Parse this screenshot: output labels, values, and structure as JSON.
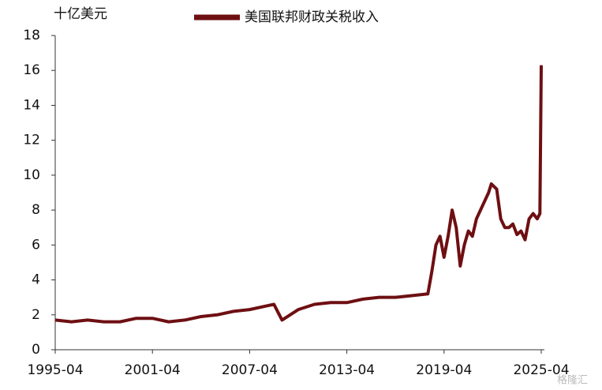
{
  "chart_data": {
    "type": "line",
    "y_label": "十亿美元",
    "x": [
      "1995-04",
      "1996-04",
      "1997-04",
      "1998-04",
      "1999-04",
      "2000-04",
      "2001-04",
      "2002-04",
      "2003-04",
      "2004-04",
      "2005-04",
      "2006-04",
      "2007-04",
      "2008-04",
      "2008-10",
      "2009-04",
      "2009-10",
      "2010-04",
      "2011-04",
      "2012-04",
      "2013-04",
      "2014-04",
      "2015-04",
      "2016-04",
      "2017-04",
      "2018-04",
      "2018-07",
      "2018-10",
      "2019-01",
      "2019-04",
      "2019-07",
      "2019-10",
      "2020-01",
      "2020-04",
      "2020-07",
      "2020-10",
      "2021-01",
      "2021-04",
      "2021-07",
      "2021-10",
      "2022-01",
      "2022-03",
      "2022-07",
      "2022-10",
      "2023-01",
      "2023-04",
      "2023-07",
      "2023-10",
      "2024-01",
      "2024-04",
      "2024-07",
      "2024-10",
      "2025-01",
      "2025-03",
      "2025-04"
    ],
    "series": [
      {
        "name": "美国联邦财政关税收入",
        "color": "#6e0f12",
        "values": [
          1.7,
          1.6,
          1.7,
          1.6,
          1.6,
          1.8,
          1.8,
          1.6,
          1.7,
          1.9,
          2.0,
          2.2,
          2.3,
          2.5,
          2.6,
          1.7,
          2.0,
          2.3,
          2.6,
          2.7,
          2.7,
          2.9,
          3.0,
          3.0,
          3.1,
          3.2,
          4.5,
          6.0,
          6.5,
          5.3,
          6.5,
          8.0,
          7.0,
          4.8,
          6.0,
          6.8,
          6.5,
          7.5,
          8.0,
          8.5,
          9.0,
          9.5,
          9.2,
          7.5,
          7.0,
          7.0,
          7.2,
          6.6,
          6.8,
          6.3,
          7.5,
          7.8,
          7.5,
          7.8,
          16.3
        ]
      }
    ],
    "xlim": [
      "1995-04",
      "2025-04"
    ],
    "xticks": [
      "1995-04",
      "2001-04",
      "2007-04",
      "2013-04",
      "2019-04",
      "2025-04"
    ],
    "ylim": [
      0,
      18
    ],
    "yticks": [
      0,
      2,
      4,
      6,
      8,
      10,
      12,
      14,
      16,
      18
    ],
    "grid": false,
    "watermark": "格隆汇"
  }
}
